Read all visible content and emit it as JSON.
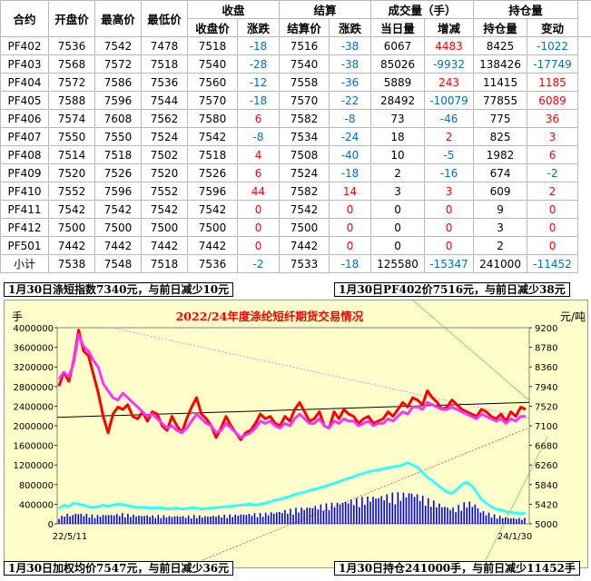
{
  "table": {
    "header_top": {
      "contract": "合约",
      "open": "开盘价",
      "high": "最高价",
      "low": "最低价",
      "close_group": "收盘",
      "settle_group": "结算",
      "volume_group": "成交量（手）",
      "oi_group": "持仓量"
    },
    "header_sub": {
      "close": "收盘价",
      "close_chg": "涨跌",
      "settle": "结算价",
      "settle_chg": "涨跌",
      "volume_today": "当日量",
      "volume_chg": "增减",
      "oi": "持仓量",
      "oi_chg": "变动"
    },
    "rows": [
      {
        "contract": "PF402",
        "open": "7536",
        "high": "7542",
        "low": "7478",
        "close": "7518",
        "close_chg": "-18",
        "settle": "7516",
        "settle_chg": "-38",
        "vol": "6067",
        "vol_chg": "4483",
        "oi": "8425",
        "oi_chg": "-1022"
      },
      {
        "contract": "PF403",
        "open": "7568",
        "high": "7572",
        "low": "7518",
        "close": "7540",
        "close_chg": "-28",
        "settle": "7540",
        "settle_chg": "-38",
        "vol": "85026",
        "vol_chg": "-9932",
        "oi": "138426",
        "oi_chg": "-17749"
      },
      {
        "contract": "PF404",
        "open": "7572",
        "high": "7586",
        "low": "7536",
        "close": "7560",
        "close_chg": "-12",
        "settle": "7558",
        "settle_chg": "-36",
        "vol": "5889",
        "vol_chg": "243",
        "oi": "11415",
        "oi_chg": "1185"
      },
      {
        "contract": "PF405",
        "open": "7588",
        "high": "7596",
        "low": "7544",
        "close": "7570",
        "close_chg": "-18",
        "settle": "7570",
        "settle_chg": "-22",
        "vol": "28492",
        "vol_chg": "-10079",
        "oi": "77855",
        "oi_chg": "6089"
      },
      {
        "contract": "PF406",
        "open": "7574",
        "high": "7608",
        "low": "7562",
        "close": "7580",
        "close_chg": "6",
        "settle": "7582",
        "settle_chg": "-8",
        "vol": "73",
        "vol_chg": "-46",
        "oi": "775",
        "oi_chg": "36"
      },
      {
        "contract": "PF407",
        "open": "7550",
        "high": "7550",
        "low": "7524",
        "close": "7542",
        "close_chg": "-8",
        "settle": "7534",
        "settle_chg": "-24",
        "vol": "18",
        "vol_chg": "2",
        "oi": "825",
        "oi_chg": "3"
      },
      {
        "contract": "PF408",
        "open": "7514",
        "high": "7518",
        "low": "7502",
        "close": "7518",
        "close_chg": "4",
        "settle": "7508",
        "settle_chg": "-40",
        "vol": "10",
        "vol_chg": "-5",
        "oi": "1982",
        "oi_chg": "6"
      },
      {
        "contract": "PF409",
        "open": "7520",
        "high": "7526",
        "low": "7520",
        "close": "7526",
        "close_chg": "6",
        "settle": "7524",
        "settle_chg": "-18",
        "vol": "2",
        "vol_chg": "-16",
        "oi": "674",
        "oi_chg": "-2"
      },
      {
        "contract": "PF410",
        "open": "7552",
        "high": "7596",
        "low": "7552",
        "close": "7596",
        "close_chg": "44",
        "settle": "7582",
        "settle_chg": "14",
        "vol": "3",
        "vol_chg": "3",
        "oi": "609",
        "oi_chg": "2"
      },
      {
        "contract": "PF411",
        "open": "7542",
        "high": "7542",
        "low": "7542",
        "close": "7542",
        "close_chg": "0",
        "settle": "7542",
        "settle_chg": "0",
        "vol": "0",
        "vol_chg": "0",
        "oi": "9",
        "oi_chg": "0"
      },
      {
        "contract": "PF412",
        "open": "7500",
        "high": "7500",
        "low": "7500",
        "close": "7500",
        "close_chg": "0",
        "settle": "7500",
        "settle_chg": "0",
        "vol": "0",
        "vol_chg": "0",
        "oi": "3",
        "oi_chg": "0"
      },
      {
        "contract": "PF501",
        "open": "7442",
        "high": "7442",
        "low": "7442",
        "close": "7442",
        "close_chg": "0",
        "settle": "7442",
        "settle_chg": "0",
        "vol": "0",
        "vol_chg": "0",
        "oi": "2",
        "oi_chg": "0"
      },
      {
        "contract": "小计",
        "open": "7538",
        "high": "7548",
        "low": "7518",
        "close": "7536",
        "close_chg": "-2",
        "settle": "7533",
        "settle_chg": "-18",
        "vol": "125580",
        "vol_chg": "-15347",
        "oi": "241000",
        "oi_chg": "-11452"
      }
    ]
  },
  "notes": {
    "index": "1月30日涤短指数7340元，与前日减少10元",
    "pf402": "1月30日PF402价7516元，与前日减少38元",
    "avg": "1月30日加权均价7547元，与前日减少36元",
    "oi": "1月30日持仓241000手，与前日减少11452手"
  },
  "colors": {
    "up": "#ff0000",
    "down": "#0070c0",
    "price_line": "#ff0000",
    "index_line": "#ff33ff",
    "oi_line": "#33ffff",
    "volume_bars": "#0000ff",
    "chart_bg": "#ffffcc",
    "title": "#ff0000"
  },
  "chart_data": {
    "type": "line",
    "title": "2022/24年度涤纶短纤期货交易情况",
    "left_axis_unit": "手",
    "right_axis_unit": "元/吨",
    "left_ticks": [
      "4000000",
      "3600000",
      "3200000",
      "2800000",
      "2400000",
      "2000000",
      "1600000",
      "1200000",
      "800000",
      "400000",
      "0"
    ],
    "right_ticks": [
      "9200",
      "8780",
      "8360",
      "7940",
      "7520",
      "7100",
      "6680",
      "6260",
      "5840",
      "5420",
      "5000"
    ],
    "x_labels": [
      "22/5/11",
      "24/1/30"
    ],
    "ylim_left": [
      0,
      4000000
    ],
    "ylim_right": [
      5000,
      9200
    ],
    "series": [
      {
        "axis": "right",
        "color": "#ff0000",
        "values": [
          7950,
          8250,
          8050,
          8500,
          9150,
          8700,
          8600,
          8200,
          7800,
          7300,
          6950,
          7350,
          7500,
          7450,
          7550,
          7300,
          7250,
          7400,
          7200,
          7400,
          7350,
          7100,
          7000,
          7300,
          7100,
          6950,
          7250,
          7500,
          7700,
          7350,
          7250,
          7100,
          6850,
          7050,
          7300,
          7100,
          6950,
          6800,
          6950,
          7000,
          7150,
          7350,
          7250,
          7300,
          7150,
          7100,
          7300,
          7200,
          7450,
          7600,
          7400,
          7200,
          7250,
          7400,
          7100,
          7050,
          7400,
          7250,
          7450,
          7350,
          7300,
          7150,
          7250,
          7300,
          7150,
          7200,
          7250,
          7400,
          7300,
          7450,
          7600,
          7500,
          7700,
          7650,
          7550,
          7850,
          7700,
          7600,
          7450,
          7500,
          7650,
          7550,
          7450,
          7400,
          7350,
          7300,
          7450,
          7400,
          7300,
          7250,
          7350,
          7200,
          7400,
          7300,
          7500,
          7450
        ]
      },
      {
        "axis": "right",
        "color": "#ff33ff",
        "values": [
          8100,
          8250,
          8150,
          8450,
          9050,
          8800,
          8700,
          8500,
          8350,
          8000,
          7850,
          7700,
          7650,
          7800,
          7700,
          7600,
          7500,
          7400,
          7300,
          7350,
          7250,
          7150,
          7050,
          7100,
          7000,
          6950,
          7050,
          7200,
          7350,
          7250,
          7150,
          7100,
          6950,
          7000,
          7150,
          7050,
          6950,
          6850,
          6900,
          6950,
          7050,
          7200,
          7150,
          7200,
          7100,
          7050,
          7150,
          7100,
          7250,
          7350,
          7250,
          7150,
          7150,
          7250,
          7100,
          7050,
          7200,
          7150,
          7250,
          7200,
          7200,
          7100,
          7150,
          7200,
          7100,
          7150,
          7150,
          7250,
          7200,
          7300,
          7400,
          7350,
          7500,
          7500,
          7450,
          7600,
          7550,
          7500,
          7450,
          7450,
          7500,
          7450,
          7400,
          7350,
          7300,
          7250,
          7350,
          7300,
          7250,
          7200,
          7250,
          7150,
          7250,
          7200,
          7300,
          7300
        ]
      },
      {
        "axis": "left",
        "color": "#33ffff",
        "values": [
          300000,
          380000,
          350000,
          420000,
          400000,
          380000,
          350000,
          330000,
          350000,
          380000,
          360000,
          380000,
          400000,
          390000,
          370000,
          350000,
          330000,
          340000,
          330000,
          320000,
          330000,
          320000,
          300000,
          310000,
          320000,
          300000,
          310000,
          330000,
          320000,
          300000,
          310000,
          320000,
          330000,
          340000,
          350000,
          360000,
          370000,
          380000,
          390000,
          400000,
          380000,
          400000,
          420000,
          450000,
          480000,
          500000,
          530000,
          560000,
          600000,
          620000,
          650000,
          680000,
          700000,
          730000,
          760000,
          790000,
          820000,
          860000,
          900000,
          930000,
          960000,
          1000000,
          1030000,
          1060000,
          1080000,
          1100000,
          1120000,
          1140000,
          1160000,
          1180000,
          1200000,
          1250000,
          1200000,
          1150000,
          1050000,
          950000,
          880000,
          800000,
          720000,
          650000,
          620000,
          700000,
          800000,
          850000,
          780000,
          650000,
          500000,
          420000,
          350000,
          300000,
          280000,
          250000,
          230000,
          220000,
          210000,
          220000
        ]
      }
    ]
  }
}
